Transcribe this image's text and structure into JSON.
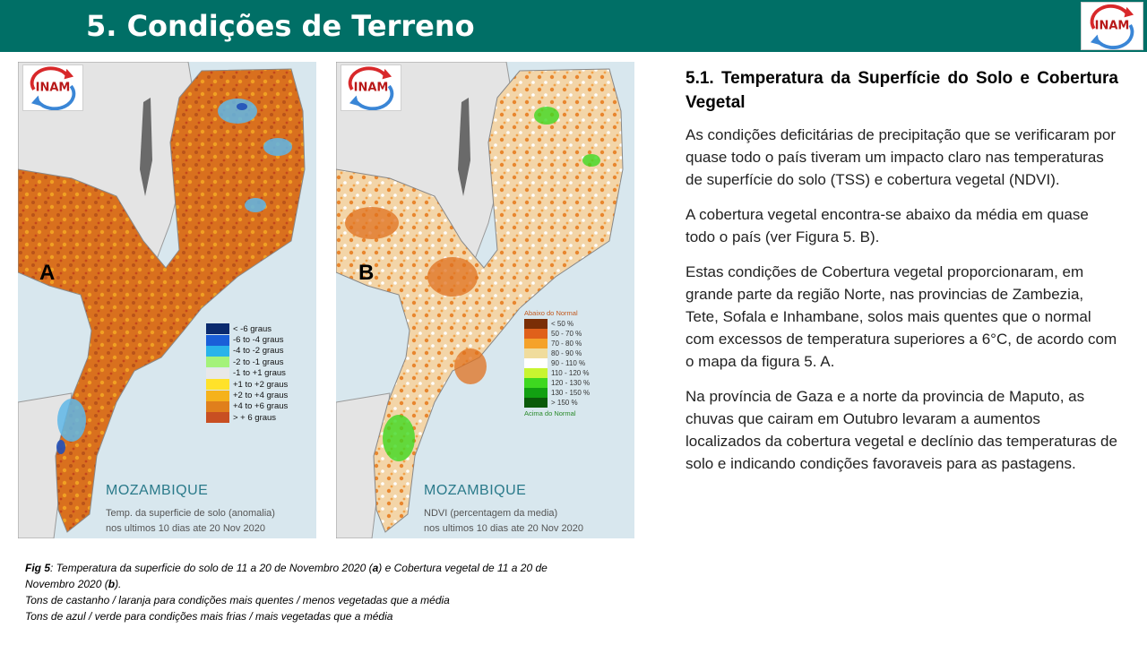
{
  "header": {
    "title": "5. Condições de Terreno",
    "logo_text": "INAM"
  },
  "colors": {
    "header_bg": "#006f66",
    "text_teal": "#2a7a8a"
  },
  "map_a": {
    "logo_text": "INAM",
    "letter": "A",
    "country": "MOZAMBIQUE",
    "caption_line1": "Temp. da superficie de solo (anomalia)",
    "caption_line2": "nos ultimos 10 dias ate 20 Nov 2020",
    "legend": [
      {
        "label": "< -6 graus",
        "color": "#0a2a6e"
      },
      {
        "label": "-6 to -4 graus",
        "color": "#1a5fd8"
      },
      {
        "label": "-4 to -2 graus",
        "color": "#29b3ea"
      },
      {
        "label": "-2 to -1 graus",
        "color": "#a4f27a"
      },
      {
        "label": "-1 to +1 graus",
        "color": "#e8e8e8"
      },
      {
        "label": "+1 to +2 graus",
        "color": "#ffe22a"
      },
      {
        "label": "+2 to +4 graus",
        "color": "#f5b21c"
      },
      {
        "label": "+4 to +6 graus",
        "color": "#e07f1c"
      },
      {
        "label": "> + 6 graus",
        "color": "#c84f22"
      }
    ]
  },
  "map_b": {
    "logo_text": "INAM",
    "letter": "B",
    "country": "MOZAMBIQUE",
    "caption_line1": "NDVI (percentagem da media)",
    "caption_line2": "nos ultimos 10 dias ate 20 Nov 2020",
    "legend_top": "Abaixo do Normal",
    "legend_bottom": "Acima do Normal",
    "legend": [
      {
        "label": "< 50 %",
        "color": "#7a2e06"
      },
      {
        "label": "50 - 70 %",
        "color": "#e0601a"
      },
      {
        "label": "70 - 80 %",
        "color": "#f5a22a"
      },
      {
        "label": "80 - 90 %",
        "color": "#f0dc9c"
      },
      {
        "label": "90 - 110 %",
        "color": "#ffffff"
      },
      {
        "label": "110 - 120 %",
        "color": "#c8f530"
      },
      {
        "label": "120 - 130 %",
        "color": "#3ed820"
      },
      {
        "label": "130 - 150 %",
        "color": "#12a012"
      },
      {
        "label": "> 150 %",
        "color": "#0a5a0a"
      }
    ]
  },
  "figure_caption": {
    "prefix": "Fig 5",
    "part1": ": Temperatura da superficie do solo de 11 a 20 de Novembro 2020 (",
    "a": "a",
    "part2": ") e Cobertura vegetal de 11 a 20 de Novembro 2020 (",
    "b": "b",
    "part3": ").",
    "line2": "Tons de castanho / laranja para condições mais quentes / menos vegetadas que a média",
    "line3": "Tons de azul  / verde para condições mais frias / mais vegetadas que a média"
  },
  "text": {
    "section_title": "5.1. Temperatura da Superfície  do Solo e Cobertura Vegetal",
    "p1": "As condições deficitárias de precipitação que se verificaram por quase todo o país tiveram um impacto claro nas temperaturas de superfície do solo (TSS) e cobertura vegetal (NDVI).",
    "p2": "A cobertura vegetal encontra-se abaixo da média em quase todo o país (ver Figura 5. B).",
    "p3": "Estas condições de Cobertura vegetal proporcionaram, em grande parte  da região Norte, nas provincias de Zambezia, Tete, Sofala e Inhambane, solos mais quentes que o normal com excessos de temperatura superiores  a 6°C, de acordo com o mapa da figura 5. A.",
    "p4": "Na província de Gaza e a norte da provincia de Maputo, as chuvas que cairam em Outubro levaram a aumentos localizados da cobertura vegetal e declínio das temperaturas de solo e indicando condições favoraveis para as pastagens."
  }
}
